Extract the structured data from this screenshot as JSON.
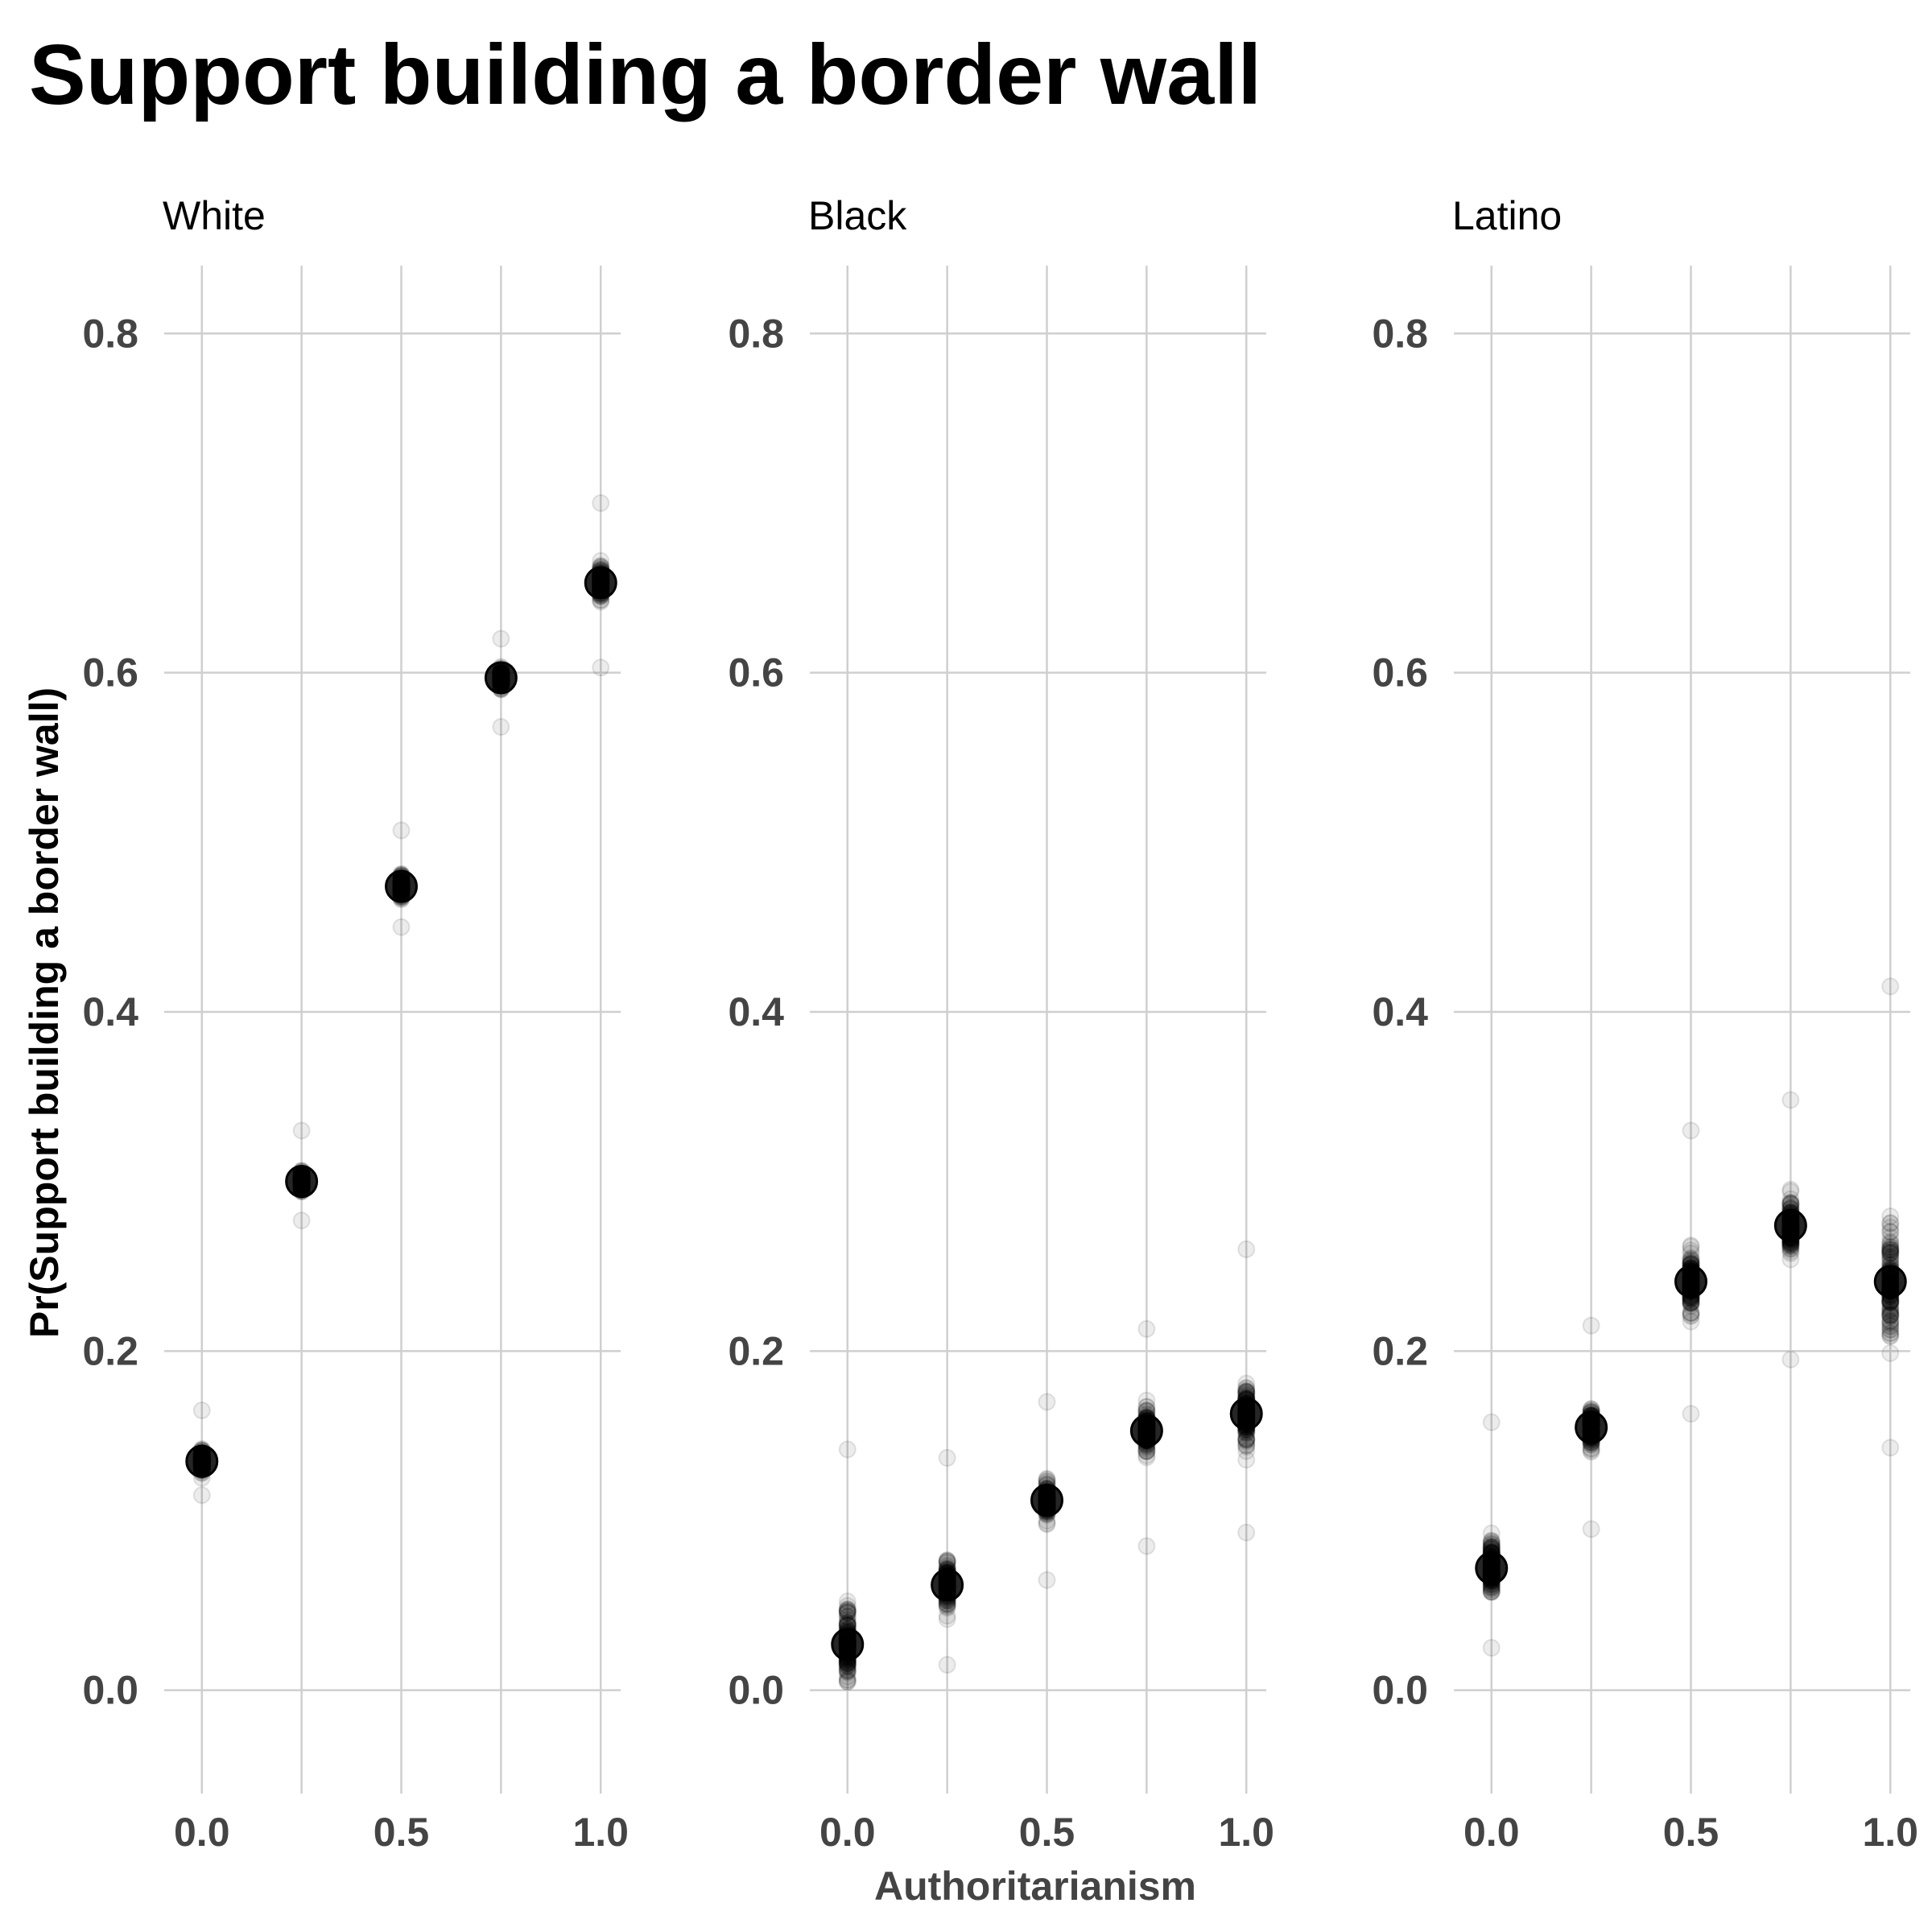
{
  "chart_data": {
    "type": "scatter",
    "title": "Support building a border wall",
    "xlabel": "Authoritarianism",
    "ylabel": "Pr(Support building a border wall)",
    "x_ticks": [
      "0.0",
      "0.5",
      "1.0"
    ],
    "y_ticks": [
      "0.0",
      "0.2",
      "0.4",
      "0.6",
      "0.8"
    ],
    "xlim": [
      -0.05,
      1.05
    ],
    "ylim": [
      -0.05,
      0.84
    ],
    "grid": true,
    "point_color": "#000000",
    "panels": [
      {
        "name": "White",
        "x": [
          0,
          0.25,
          0.5,
          0.75,
          1
        ],
        "mean": [
          0.135,
          0.3,
          0.474,
          0.597,
          0.653
        ],
        "sim_range": [
          [
            0.115,
            0.165
          ],
          [
            0.277,
            0.33
          ],
          [
            0.45,
            0.507
          ],
          [
            0.568,
            0.62
          ],
          [
            0.603,
            0.7
          ]
        ]
      },
      {
        "name": "Black",
        "x": [
          0,
          0.25,
          0.5,
          0.75,
          1
        ],
        "mean": [
          0.027,
          0.062,
          0.112,
          0.153,
          0.163
        ],
        "sim_range": [
          [
            0.005,
            0.142
          ],
          [
            0.015,
            0.137
          ],
          [
            0.065,
            0.17
          ],
          [
            0.085,
            0.213
          ],
          [
            0.093,
            0.26
          ]
        ]
      },
      {
        "name": "Latino",
        "x": [
          0,
          0.25,
          0.5,
          0.75,
          1
        ],
        "mean": [
          0.072,
          0.155,
          0.241,
          0.274,
          0.241
        ],
        "sim_range": [
          [
            0.025,
            0.158
          ],
          [
            0.095,
            0.215
          ],
          [
            0.163,
            0.33
          ],
          [
            0.195,
            0.348
          ],
          [
            0.143,
            0.415
          ]
        ]
      }
    ]
  }
}
